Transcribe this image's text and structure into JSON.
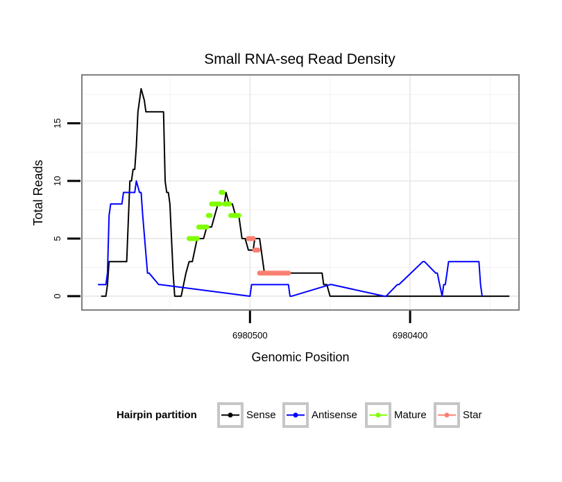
{
  "chart_data": {
    "type": "line",
    "title": "Small RNA-seq Read Density",
    "xlabel": "Genomic Position",
    "ylabel": "Total Reads",
    "x_reversed": true,
    "xlim": [
      6980605,
      6980332
    ],
    "ylim": [
      -1.2,
      19.2
    ],
    "yticks": [
      0,
      5,
      10,
      15
    ],
    "xticks": [
      6980500,
      6980400
    ],
    "xtick_labels": [
      "6980500",
      "6980400"
    ],
    "grid": true,
    "legend": {
      "title": "Hairpin partition",
      "position": "bottom",
      "entries": [
        {
          "label": "Sense",
          "color": "#000000"
        },
        {
          "label": "Antisense",
          "color": "#0000ff"
        },
        {
          "label": "Mature",
          "color": "#7fff00"
        },
        {
          "label": "Star",
          "color": "#fa8072"
        }
      ]
    },
    "series": [
      {
        "name": "Sense",
        "color": "#000000",
        "style": "line",
        "x": [
          6980593,
          6980590,
          6980589,
          6980588,
          6980577,
          6980575,
          6980574,
          6980573,
          6980572,
          6980571,
          6980570,
          6980569,
          6980568,
          6980566,
          6980565,
          6980563,
          6980562,
          6980554,
          6980553,
          6980552,
          6980551,
          6980550,
          6980549,
          6980548,
          6980547,
          6980546,
          6980543,
          6980540,
          6980538,
          6980536,
          6980533,
          6980530,
          6980529,
          6980527,
          6980525,
          6980524,
          6980522,
          6980520,
          6980518,
          6980516,
          6980515,
          6980513,
          6980511,
          6980509,
          6980507,
          6980505,
          6980503,
          6980501,
          6980499,
          6980498,
          6980497,
          6980496,
          6980494,
          6980493,
          6980491,
          6980489,
          6980487,
          6980484,
          6980481,
          6980479,
          6980477,
          6980474,
          6980472,
          6980470,
          6980468,
          6980466,
          6980464,
          6980462,
          6980459,
          6980457,
          6980455,
          6980454,
          6980452,
          6980450,
          6980449,
          6980448,
          6980338
        ],
        "y": [
          0,
          0,
          1,
          3,
          3,
          10,
          10,
          11,
          11,
          13,
          16,
          17,
          18,
          17,
          16,
          16,
          16,
          16,
          10,
          9,
          9,
          8,
          5,
          2,
          0,
          0,
          0,
          2,
          3,
          3,
          5,
          5,
          5,
          6,
          6,
          6,
          7,
          8,
          8,
          8,
          9,
          8,
          8,
          7,
          7,
          5,
          5,
          4,
          4,
          4,
          5,
          5,
          5,
          4,
          2,
          2,
          2,
          2,
          2,
          2,
          2,
          2,
          2,
          2,
          2,
          2,
          2,
          2,
          2,
          2,
          2,
          1,
          1,
          0,
          0,
          0,
          0
        ]
      },
      {
        "name": "Antisense",
        "color": "#0000ff",
        "style": "line",
        "x": [
          6980595,
          6980590,
          6980589,
          6980588,
          6980587,
          6980580,
          6980579,
          6980572,
          6980571,
          6980569,
          6980568,
          6980567,
          6980564,
          6980563,
          6980557,
          6980556,
          6980500,
          6980499,
          6980477,
          6980476,
          6980475,
          6980474,
          6980450,
          6980449,
          6980416,
          6980415,
          6980408,
          6980407,
          6980392,
          6980391,
          6980384,
          6980383,
          6980380,
          6980379,
          6980378,
          6980377,
          6980376,
          6980375,
          6980357,
          6980356,
          6980355
        ],
        "y": [
          1,
          1,
          2,
          7,
          8,
          8,
          9,
          9,
          10,
          9,
          9,
          7,
          2,
          2,
          1,
          1,
          0,
          1,
          1,
          1,
          0,
          0,
          1,
          1,
          0,
          0,
          1,
          1,
          3,
          3,
          2,
          2,
          0,
          1,
          1,
          2,
          3,
          3,
          3,
          1,
          0
        ]
      },
      {
        "name": "Mature",
        "color": "#7fff00",
        "style": "points",
        "x": [
          6980538,
          6980537,
          6980536,
          6980535,
          6980534,
          6980533,
          6980532,
          6980531,
          6980530,
          6980529,
          6980528,
          6980527,
          6980526,
          6980525,
          6980524,
          6980523,
          6980522,
          6980521,
          6980520,
          6980519,
          6980518,
          6980517,
          6980516,
          6980515,
          6980514,
          6980513,
          6980512,
          6980511,
          6980510,
          6980509,
          6980508,
          6980507
        ],
        "y": [
          5,
          5,
          5,
          5,
          5,
          5,
          6,
          6,
          6,
          6,
          6,
          6,
          7,
          7,
          8,
          8,
          8,
          8,
          8,
          8,
          9,
          9,
          8,
          8,
          8,
          8,
          7,
          7,
          7,
          7,
          7,
          7
        ]
      },
      {
        "name": "Star",
        "color": "#fa8072",
        "style": "points",
        "x": [
          6980501,
          6980500,
          6980499,
          6980498,
          6980497,
          6980496,
          6980495,
          6980494,
          6980493,
          6980492,
          6980491,
          6980490,
          6980489,
          6980488,
          6980487,
          6980486,
          6980485,
          6980484,
          6980483,
          6980482,
          6980481,
          6980480,
          6980479,
          6980478,
          6980477,
          6980476
        ],
        "y": [
          5,
          5,
          5,
          5,
          4,
          4,
          4,
          2,
          2,
          2,
          2,
          2,
          2,
          2,
          2,
          2,
          2,
          2,
          2,
          2,
          2,
          2,
          2,
          2,
          2,
          2
        ]
      }
    ]
  }
}
